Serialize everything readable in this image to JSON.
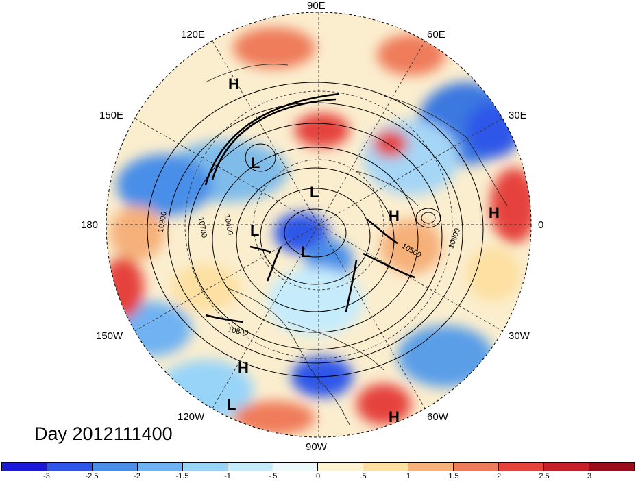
{
  "map": {
    "day_label": "Day 2012111400",
    "longitude_labels": {
      "e90": "90E",
      "e120": "120E",
      "e60": "60E",
      "e150": "150E",
      "e30": "30E",
      "d180": "180",
      "d0": "0",
      "w150": "150W",
      "w30": "30W",
      "w120": "120W",
      "w60": "60W",
      "w90": "90W"
    },
    "pressure_centers": [
      {
        "type": "H"
      },
      {
        "type": "L"
      },
      {
        "type": "L"
      },
      {
        "type": "L"
      },
      {
        "type": "L"
      },
      {
        "type": "H"
      },
      {
        "type": "H"
      },
      {
        "type": "H"
      },
      {
        "type": "L"
      },
      {
        "type": "H"
      }
    ],
    "contour_labels": [
      "10900",
      "10700",
      "10400",
      "10500",
      "10800",
      "10800"
    ]
  },
  "colorbar": {
    "colors": [
      "#1a1ad8",
      "#2f56e8",
      "#4a8ee8",
      "#6fb2f2",
      "#98d4f8",
      "#c6ecfc",
      "#eef9fc",
      "#fdf3d0",
      "#fde0a2",
      "#f6b07a",
      "#ef7c5a",
      "#e5433c",
      "#c7202a",
      "#9a0e1c"
    ],
    "tick_labels": [
      "-3",
      "-2.5",
      "-2",
      "-1.5",
      "-1",
      "-.5",
      "0",
      ".5",
      "1",
      "1.5",
      "2",
      "2.5",
      "3"
    ]
  }
}
